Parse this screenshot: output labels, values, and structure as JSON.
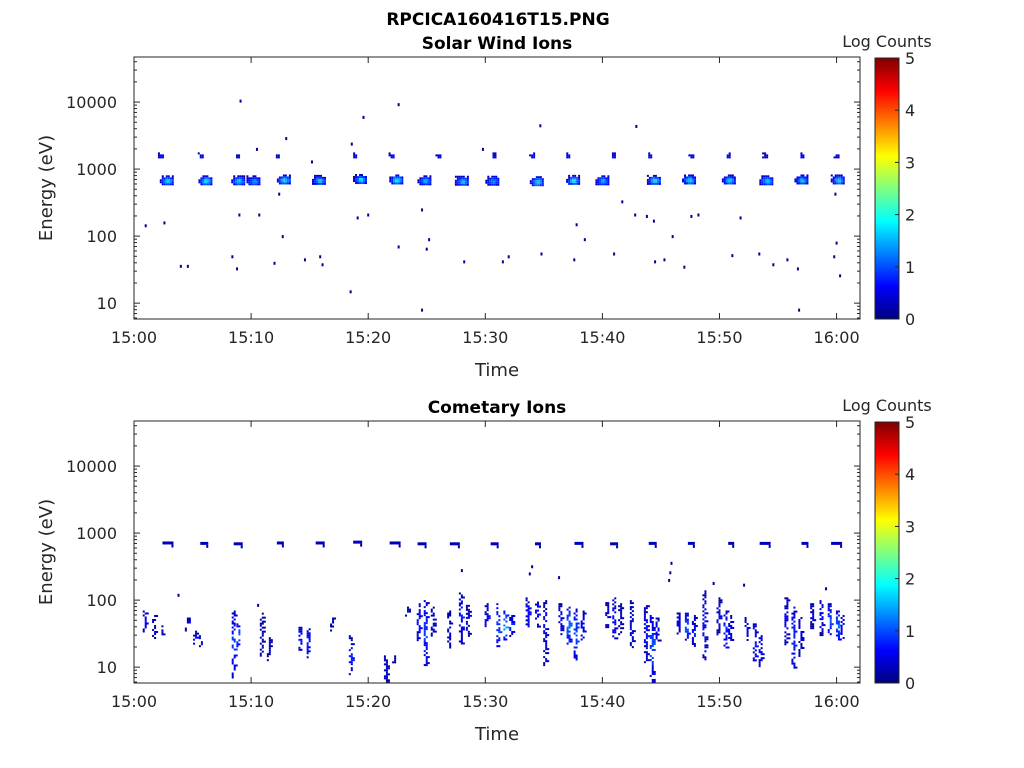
{
  "figure_title": "RPCICA160416T15.PNG",
  "colors": {
    "axis": "#262626",
    "colormap": [
      "#00007f",
      "#0000ff",
      "#007fff",
      "#00ffff",
      "#7fff7f",
      "#ffff00",
      "#ff7f00",
      "#ff0000",
      "#7f0000"
    ]
  },
  "chart_data": [
    {
      "type": "heatmap",
      "title": "Solar Wind Ions",
      "xlabel": "Time",
      "ylabel": "Energy (eV)",
      "yscale": "log",
      "xlim": [
        "15:00",
        "16:02"
      ],
      "ylim": [
        5.8,
        47000
      ],
      "xticks": [
        "15:00",
        "15:10",
        "15:20",
        "15:30",
        "15:40",
        "15:50",
        "16:00"
      ],
      "yticks": [
        "10",
        "100",
        "1000",
        "10000"
      ],
      "colorbar": {
        "label": "Log Counts",
        "range": [
          0,
          5
        ],
        "ticks": [
          "0",
          "1",
          "2",
          "3",
          "4",
          "5"
        ]
      },
      "clusters": [
        {
          "t": 2.8,
          "e": 680,
          "c": 1.9
        },
        {
          "t": 6.1,
          "e": 680,
          "c": 2.0
        },
        {
          "t": 8.9,
          "e": 680,
          "c": 1.8
        },
        {
          "t": 10.2,
          "e": 680,
          "c": 1.6
        },
        {
          "t": 12.8,
          "e": 700,
          "c": 2.0
        },
        {
          "t": 15.8,
          "e": 690,
          "c": 1.9
        },
        {
          "t": 19.3,
          "e": 710,
          "c": 2.0
        },
        {
          "t": 22.4,
          "e": 700,
          "c": 2.1
        },
        {
          "t": 24.8,
          "e": 680,
          "c": 1.6
        },
        {
          "t": 28.0,
          "e": 670,
          "c": 1.8
        },
        {
          "t": 30.6,
          "e": 670,
          "c": 1.4
        },
        {
          "t": 34.4,
          "e": 660,
          "c": 1.9
        },
        {
          "t": 37.5,
          "e": 690,
          "c": 2.0
        },
        {
          "t": 40.0,
          "e": 680,
          "c": 1.6
        },
        {
          "t": 44.4,
          "e": 690,
          "c": 2.0
        },
        {
          "t": 47.4,
          "e": 700,
          "c": 2.0
        },
        {
          "t": 50.8,
          "e": 700,
          "c": 1.9
        },
        {
          "t": 54.0,
          "e": 680,
          "c": 1.8
        },
        {
          "t": 57.0,
          "e": 700,
          "c": 1.8
        },
        {
          "t": 60.1,
          "e": 700,
          "c": 1.9
        },
        {
          "t": 2.3,
          "e": 1600,
          "c": 0.8
        },
        {
          "t": 5.7,
          "e": 1600,
          "c": 0.7
        },
        {
          "t": 8.8,
          "e": 1600,
          "c": 0.7
        },
        {
          "t": 12.2,
          "e": 1600,
          "c": 0.6
        },
        {
          "t": 18.8,
          "e": 1600,
          "c": 0.8
        },
        {
          "t": 22.0,
          "e": 1600,
          "c": 0.8
        },
        {
          "t": 26.0,
          "e": 1600,
          "c": 0.8
        },
        {
          "t": 30.7,
          "e": 1600,
          "c": 0.8
        },
        {
          "t": 34.0,
          "e": 1600,
          "c": 0.8
        },
        {
          "t": 37.0,
          "e": 1600,
          "c": 0.7
        },
        {
          "t": 40.9,
          "e": 1600,
          "c": 0.8
        },
        {
          "t": 44.0,
          "e": 1600,
          "c": 0.8
        },
        {
          "t": 47.6,
          "e": 1600,
          "c": 0.7
        },
        {
          "t": 50.7,
          "e": 1600,
          "c": 0.7
        },
        {
          "t": 53.9,
          "e": 1600,
          "c": 0.6
        },
        {
          "t": 57.0,
          "e": 1600,
          "c": 0.7
        },
        {
          "t": 60.0,
          "e": 1600,
          "c": 0.7
        }
      ],
      "points": [
        {
          "t": 1.0,
          "e": 145
        },
        {
          "t": 2.6,
          "e": 160
        },
        {
          "t": 4.0,
          "e": 36
        },
        {
          "t": 4.6,
          "e": 36
        },
        {
          "t": 8.4,
          "e": 50
        },
        {
          "t": 8.8,
          "e": 33
        },
        {
          "t": 9.0,
          "e": 210
        },
        {
          "t": 9.1,
          "e": 10500
        },
        {
          "t": 10.5,
          "e": 2000
        },
        {
          "t": 10.7,
          "e": 210
        },
        {
          "t": 12.0,
          "e": 40
        },
        {
          "t": 12.4,
          "e": 430
        },
        {
          "t": 12.7,
          "e": 100
        },
        {
          "t": 13.0,
          "e": 2900
        },
        {
          "t": 14.6,
          "e": 45
        },
        {
          "t": 15.2,
          "e": 1300
        },
        {
          "t": 15.9,
          "e": 50
        },
        {
          "t": 16.1,
          "e": 38
        },
        {
          "t": 18.5,
          "e": 15
        },
        {
          "t": 18.6,
          "e": 2400
        },
        {
          "t": 19.1,
          "e": 190
        },
        {
          "t": 19.6,
          "e": 6000
        },
        {
          "t": 20.0,
          "e": 210
        },
        {
          "t": 22.6,
          "e": 70
        },
        {
          "t": 22.6,
          "e": 9300
        },
        {
          "t": 24.6,
          "e": 8
        },
        {
          "t": 24.6,
          "e": 250
        },
        {
          "t": 25.0,
          "e": 65
        },
        {
          "t": 25.2,
          "e": 90
        },
        {
          "t": 28.2,
          "e": 42
        },
        {
          "t": 29.8,
          "e": 2000
        },
        {
          "t": 31.5,
          "e": 42
        },
        {
          "t": 32.0,
          "e": 50
        },
        {
          "t": 34.7,
          "e": 4500
        },
        {
          "t": 34.8,
          "e": 55
        },
        {
          "t": 37.6,
          "e": 45
        },
        {
          "t": 38.5,
          "e": 90
        },
        {
          "t": 37.8,
          "e": 150
        },
        {
          "t": 41.0,
          "e": 55
        },
        {
          "t": 41.7,
          "e": 330
        },
        {
          "t": 42.9,
          "e": 4400
        },
        {
          "t": 42.8,
          "e": 210
        },
        {
          "t": 43.8,
          "e": 200
        },
        {
          "t": 44.4,
          "e": 170
        },
        {
          "t": 44.5,
          "e": 42
        },
        {
          "t": 45.3,
          "e": 45
        },
        {
          "t": 46.0,
          "e": 100
        },
        {
          "t": 47.0,
          "e": 35
        },
        {
          "t": 47.6,
          "e": 200
        },
        {
          "t": 48.2,
          "e": 210
        },
        {
          "t": 51.1,
          "e": 52
        },
        {
          "t": 51.8,
          "e": 190
        },
        {
          "t": 53.4,
          "e": 55
        },
        {
          "t": 54.6,
          "e": 38
        },
        {
          "t": 55.8,
          "e": 45
        },
        {
          "t": 56.8,
          "e": 8
        },
        {
          "t": 56.7,
          "e": 33
        },
        {
          "t": 59.8,
          "e": 50
        },
        {
          "t": 59.9,
          "e": 430
        },
        {
          "t": 60.0,
          "e": 80
        },
        {
          "t": 60.3,
          "e": 26
        }
      ]
    },
    {
      "type": "heatmap",
      "title": "Cometary Ions",
      "xlabel": "Time",
      "ylabel": "Energy (eV)",
      "yscale": "log",
      "xlim": [
        "15:00",
        "16:02"
      ],
      "ylim": [
        5.8,
        47000
      ],
      "xticks": [
        "15:00",
        "15:10",
        "15:20",
        "15:30",
        "15:40",
        "15:50",
        "16:00"
      ],
      "yticks": [
        "10",
        "100",
        "1000",
        "10000"
      ],
      "colorbar": {
        "label": "Log Counts",
        "range": [
          0,
          5
        ],
        "ticks": [
          "0",
          "1",
          "2",
          "3",
          "4",
          "5"
        ]
      },
      "upper_band": [
        {
          "t": 2.9,
          "e": 700
        },
        {
          "t": 6.0,
          "e": 690
        },
        {
          "t": 8.9,
          "e": 680
        },
        {
          "t": 12.5,
          "e": 700
        },
        {
          "t": 15.9,
          "e": 700
        },
        {
          "t": 19.1,
          "e": 720
        },
        {
          "t": 22.3,
          "e": 700
        },
        {
          "t": 24.6,
          "e": 680
        },
        {
          "t": 27.4,
          "e": 680
        },
        {
          "t": 30.8,
          "e": 680
        },
        {
          "t": 34.5,
          "e": 680
        },
        {
          "t": 38.0,
          "e": 690
        },
        {
          "t": 41.0,
          "e": 680
        },
        {
          "t": 44.3,
          "e": 690
        },
        {
          "t": 47.6,
          "e": 690
        },
        {
          "t": 51.0,
          "e": 690
        },
        {
          "t": 53.9,
          "e": 690
        },
        {
          "t": 57.3,
          "e": 690
        },
        {
          "t": 60.0,
          "e": 690
        }
      ],
      "columns": [
        {
          "t": 1.0,
          "lo": 35,
          "hi": 70,
          "c": 0.6
        },
        {
          "t": 1.8,
          "lo": 28,
          "hi": 60,
          "c": 0.5
        },
        {
          "t": 2.6,
          "lo": 30,
          "hi": 45,
          "c": 0.4
        },
        {
          "t": 4.6,
          "lo": 35,
          "hi": 55,
          "c": 0.6
        },
        {
          "t": 5.3,
          "lo": 22,
          "hi": 35,
          "c": 0.6
        },
        {
          "t": 5.8,
          "lo": 20,
          "hi": 30,
          "c": 0.5
        },
        {
          "t": 8.6,
          "lo": 7,
          "hi": 70,
          "c": 0.9
        },
        {
          "t": 9.0,
          "lo": 20,
          "hi": 45,
          "c": 1.3
        },
        {
          "t": 11.0,
          "lo": 15,
          "hi": 65,
          "c": 0.3
        },
        {
          "t": 11.6,
          "lo": 13,
          "hi": 28,
          "c": 0.3
        },
        {
          "t": 14.3,
          "lo": 18,
          "hi": 40,
          "c": 0.6
        },
        {
          "t": 15.0,
          "lo": 14,
          "hi": 38,
          "c": 0.7
        },
        {
          "t": 17.0,
          "lo": 35,
          "hi": 55,
          "c": 0.3
        },
        {
          "t": 18.6,
          "lo": 8,
          "hi": 30,
          "c": 0.8
        },
        {
          "t": 21.6,
          "lo": 6,
          "hi": 15,
          "c": 0.4
        },
        {
          "t": 22.3,
          "lo": 12,
          "hi": 15,
          "c": 0.3
        },
        {
          "t": 23.4,
          "lo": 60,
          "hi": 80,
          "c": 0.3
        },
        {
          "t": 24.4,
          "lo": 25,
          "hi": 90,
          "c": 0.6
        },
        {
          "t": 25.0,
          "lo": 11,
          "hi": 100,
          "c": 0.9
        },
        {
          "t": 25.6,
          "lo": 30,
          "hi": 80,
          "c": 0.5
        },
        {
          "t": 27.0,
          "lo": 20,
          "hi": 70,
          "c": 0.4
        },
        {
          "t": 28.0,
          "lo": 22,
          "hi": 130,
          "c": 0.7
        },
        {
          "t": 28.6,
          "lo": 30,
          "hi": 85,
          "c": 0.5
        },
        {
          "t": 30.2,
          "lo": 40,
          "hi": 90,
          "c": 0.5
        },
        {
          "t": 31.2,
          "lo": 20,
          "hi": 90,
          "c": 1.0
        },
        {
          "t": 31.8,
          "lo": 25,
          "hi": 70,
          "c": 1.4
        },
        {
          "t": 32.3,
          "lo": 30,
          "hi": 60,
          "c": 0.8
        },
        {
          "t": 33.7,
          "lo": 40,
          "hi": 110,
          "c": 0.6
        },
        {
          "t": 34.5,
          "lo": 40,
          "hi": 95,
          "c": 0.7
        },
        {
          "t": 35.2,
          "lo": 11,
          "hi": 100,
          "c": 0.5
        },
        {
          "t": 36.5,
          "lo": 30,
          "hi": 90,
          "c": 0.6
        },
        {
          "t": 37.2,
          "lo": 22,
          "hi": 80,
          "c": 1.2
        },
        {
          "t": 37.8,
          "lo": 13,
          "hi": 75,
          "c": 1.1
        },
        {
          "t": 38.4,
          "lo": 25,
          "hi": 70,
          "c": 0.6
        },
        {
          "t": 40.5,
          "lo": 40,
          "hi": 100,
          "c": 0.5
        },
        {
          "t": 41.1,
          "lo": 25,
          "hi": 110,
          "c": 0.7
        },
        {
          "t": 41.6,
          "lo": 30,
          "hi": 90,
          "c": 0.4
        },
        {
          "t": 42.6,
          "lo": 20,
          "hi": 100,
          "c": 0.5
        },
        {
          "t": 43.8,
          "lo": 12,
          "hi": 90,
          "c": 0.6
        },
        {
          "t": 44.3,
          "lo": 6,
          "hi": 60,
          "c": 1.0
        },
        {
          "t": 44.8,
          "lo": 25,
          "hi": 55,
          "c": 0.5
        },
        {
          "t": 46.6,
          "lo": 30,
          "hi": 70,
          "c": 0.6
        },
        {
          "t": 47.3,
          "lo": 25,
          "hi": 65,
          "c": 1.0
        },
        {
          "t": 47.9,
          "lo": 20,
          "hi": 60,
          "c": 0.7
        },
        {
          "t": 48.8,
          "lo": 12,
          "hi": 140,
          "c": 0.5
        },
        {
          "t": 50.0,
          "lo": 30,
          "hi": 110,
          "c": 0.4
        },
        {
          "t": 50.6,
          "lo": 20,
          "hi": 70,
          "c": 0.9
        },
        {
          "t": 51.0,
          "lo": 25,
          "hi": 60,
          "c": 0.6
        },
        {
          "t": 52.4,
          "lo": 25,
          "hi": 60,
          "c": 0.6
        },
        {
          "t": 53.1,
          "lo": 12,
          "hi": 45,
          "c": 0.7
        },
        {
          "t": 53.6,
          "lo": 10,
          "hi": 30,
          "c": 0.5
        },
        {
          "t": 55.8,
          "lo": 20,
          "hi": 110,
          "c": 0.5
        },
        {
          "t": 56.4,
          "lo": 10,
          "hi": 80,
          "c": 0.8
        },
        {
          "t": 57.0,
          "lo": 15,
          "hi": 60,
          "c": 0.4
        },
        {
          "t": 58.0,
          "lo": 35,
          "hi": 90,
          "c": 0.4
        },
        {
          "t": 58.8,
          "lo": 30,
          "hi": 100,
          "c": 0.6
        },
        {
          "t": 59.5,
          "lo": 30,
          "hi": 90,
          "c": 1.0
        },
        {
          "t": 60.2,
          "lo": 25,
          "hi": 70,
          "c": 1.2
        },
        {
          "t": 60.6,
          "lo": 25,
          "hi": 60,
          "c": 0.7
        }
      ],
      "points": [
        {
          "t": 3.8,
          "e": 120
        },
        {
          "t": 10.6,
          "e": 85
        },
        {
          "t": 28.0,
          "e": 280
        },
        {
          "t": 33.8,
          "e": 250
        },
        {
          "t": 34.0,
          "e": 320
        },
        {
          "t": 36.3,
          "e": 220
        },
        {
          "t": 45.7,
          "e": 200
        },
        {
          "t": 45.8,
          "e": 260
        },
        {
          "t": 45.9,
          "e": 360
        },
        {
          "t": 49.5,
          "e": 180
        },
        {
          "t": 52.1,
          "e": 170
        },
        {
          "t": 59.1,
          "e": 150
        }
      ]
    }
  ]
}
